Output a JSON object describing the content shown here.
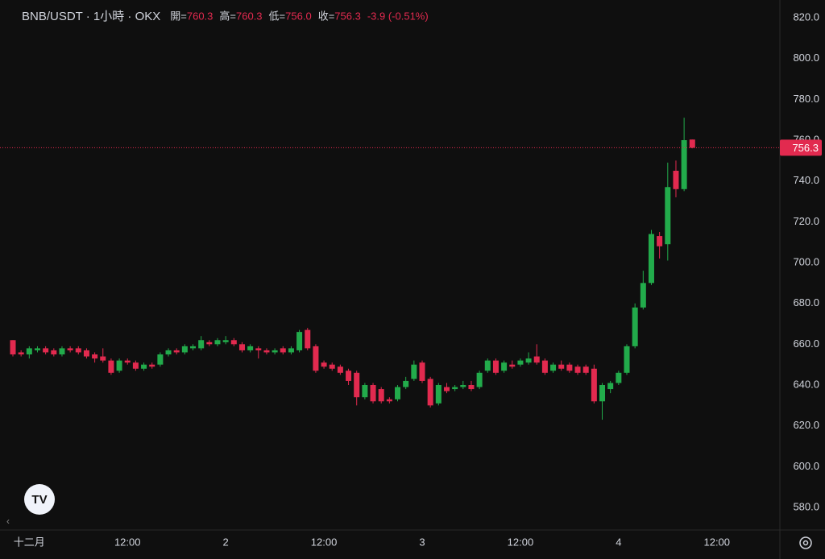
{
  "header": {
    "title": "BNB/USDT · 1小時 · OKX",
    "items": [
      {
        "label": "開=",
        "value": "760.3"
      },
      {
        "label": "高=",
        "value": "760.3"
      },
      {
        "label": "低=",
        "value": "756.0"
      },
      {
        "label": "收=",
        "value": "756.3"
      }
    ],
    "change": "-3.9 (-0.51%)"
  },
  "chart_data": {
    "type": "candlestick",
    "categories": [
      null,
      null,
      "十二月",
      null,
      null,
      null,
      null,
      null,
      null,
      null,
      null,
      null,
      null,
      null,
      "12:00",
      null,
      null,
      null,
      null,
      null,
      null,
      null,
      null,
      null,
      null,
      null,
      "2",
      null,
      null,
      null,
      null,
      null,
      null,
      null,
      null,
      null,
      null,
      null,
      "12:00",
      null,
      null,
      null,
      null,
      null,
      null,
      null,
      null,
      null,
      null,
      null,
      "3",
      null,
      null,
      null,
      null,
      null,
      null,
      null,
      null,
      null,
      null,
      null,
      "12:00",
      null,
      null,
      null,
      null,
      null,
      null,
      null,
      null,
      null,
      null,
      null,
      "4",
      null,
      null,
      null,
      null,
      null,
      null,
      null,
      null,
      null,
      null,
      null,
      "12:00"
    ],
    "open": [
      662,
      656,
      655,
      657,
      658,
      657,
      655,
      658,
      658,
      657,
      655,
      654,
      652,
      647,
      652,
      651,
      648,
      650,
      650,
      655,
      657,
      656,
      658,
      658,
      661,
      660,
      661,
      662,
      660,
      657,
      658,
      657,
      656,
      658,
      656,
      657,
      667,
      659,
      651,
      650,
      649,
      647,
      646,
      634,
      640,
      638,
      633,
      633,
      639,
      643,
      651,
      643,
      631,
      639,
      638,
      639,
      640,
      639,
      647,
      652,
      647,
      650,
      650,
      651,
      654,
      652,
      647,
      650,
      650,
      649,
      649,
      648,
      632,
      638,
      641,
      646,
      659,
      678,
      690,
      713,
      709,
      745,
      736,
      760.3,
      null,
      null,
      null
    ],
    "high": [
      662,
      657,
      659,
      659,
      659,
      658,
      659,
      659,
      659,
      658,
      656,
      658,
      653,
      653,
      653,
      652,
      651,
      651,
      656,
      658,
      658,
      660,
      660,
      664,
      662,
      663,
      664,
      663,
      661,
      660,
      659,
      658,
      658,
      659,
      659,
      667,
      668,
      660,
      652,
      651,
      650,
      648,
      647,
      641,
      641,
      639,
      634,
      640,
      644,
      652,
      652,
      644,
      641,
      641,
      640,
      642,
      642,
      647,
      653,
      653,
      652,
      652,
      653,
      656,
      660,
      653,
      651,
      652,
      651,
      650,
      650,
      650,
      641,
      642,
      647,
      660,
      680,
      696,
      716,
      715,
      749,
      750,
      771,
      760.3,
      null,
      null,
      null
    ],
    "low": [
      654,
      654,
      653,
      656,
      655,
      654,
      654,
      656,
      655,
      653,
      651,
      651,
      645,
      646,
      650,
      647,
      647,
      648,
      649,
      654,
      655,
      655,
      657,
      657,
      659,
      659,
      660,
      659,
      656,
      656,
      653,
      655,
      655,
      655,
      655,
      656,
      657,
      646,
      648,
      647,
      645,
      640,
      630,
      633,
      631,
      631,
      631,
      632,
      638,
      642,
      641,
      629,
      630,
      636,
      637,
      638,
      637,
      638,
      646,
      645,
      646,
      648,
      649,
      650,
      650,
      645,
      646,
      647,
      646,
      645,
      645,
      631,
      623,
      636,
      640,
      645,
      658,
      677,
      689,
      702,
      701,
      732,
      735,
      756,
      null,
      null,
      null
    ],
    "close": [
      655,
      655,
      658,
      658,
      656,
      655,
      658,
      657,
      656,
      654,
      653,
      652,
      646,
      652,
      651,
      648,
      650,
      649,
      655,
      657,
      656,
      659,
      659,
      662,
      660,
      662,
      662,
      660,
      657,
      659,
      657,
      656,
      657,
      656,
      658,
      666,
      658,
      647,
      649,
      648,
      646,
      642,
      634,
      640,
      632,
      632,
      632,
      639,
      642,
      650,
      642,
      630,
      640,
      637,
      639,
      640,
      638,
      646,
      652,
      646,
      651,
      649,
      652,
      653,
      651,
      646,
      650,
      648,
      647,
      646,
      646,
      632,
      640,
      641,
      646,
      659,
      678,
      690,
      714,
      708,
      737,
      736,
      760,
      756.3,
      null,
      null,
      null
    ],
    "up_color": "#22ab4b",
    "down_color": "#e22a4f",
    "ylim": [
      580,
      820
    ],
    "yticks": [
      {
        "value": 580,
        "label": "580.0"
      },
      {
        "value": 600,
        "label": "600.0"
      },
      {
        "value": 620,
        "label": "620.0"
      },
      {
        "value": 640,
        "label": "640.0"
      },
      {
        "value": 660,
        "label": "660.0"
      },
      {
        "value": 680,
        "label": "680.0"
      },
      {
        "value": 700,
        "label": "700.0"
      },
      {
        "value": 720,
        "label": "720.0"
      },
      {
        "value": 740,
        "label": "740.0"
      },
      {
        "value": 760,
        "label": "760.0"
      },
      {
        "value": 780,
        "label": "780.0"
      },
      {
        "value": 800,
        "label": "800.0"
      },
      {
        "value": 820,
        "label": "820.0"
      }
    ],
    "current_price": 756.3,
    "grid": false
  }
}
